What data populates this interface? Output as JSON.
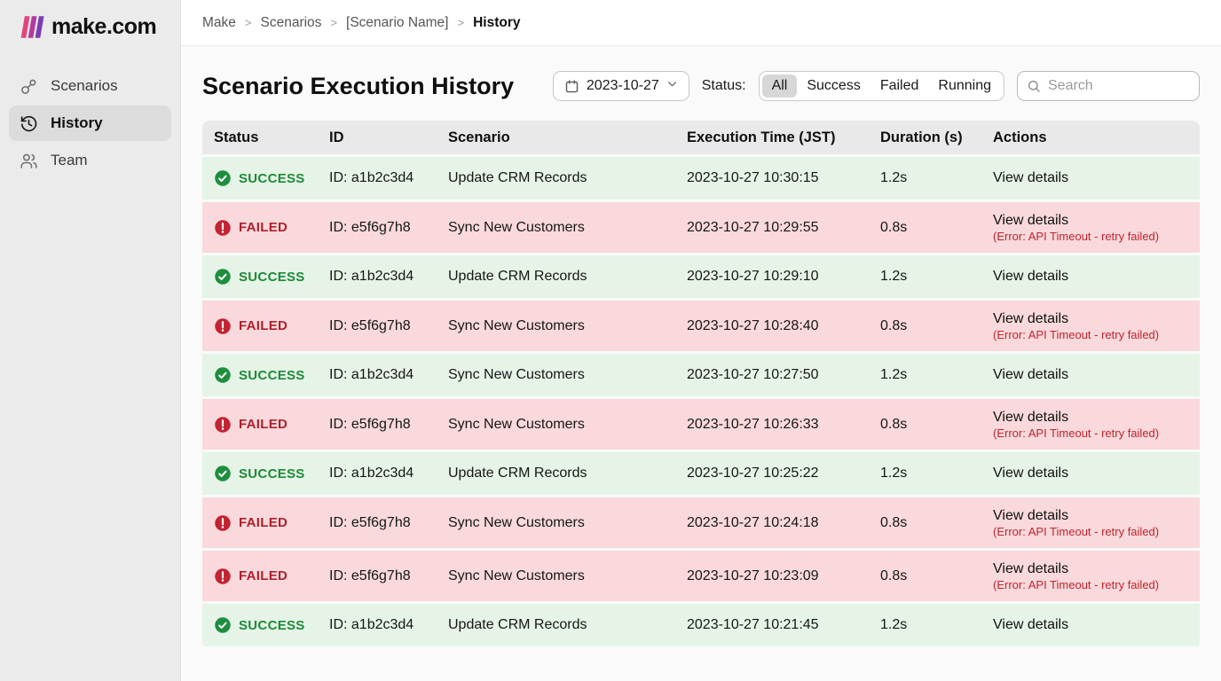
{
  "brand": {
    "name": "make.com",
    "bar_colors": [
      "#e0457c",
      "#b23a9c",
      "#7b3db4"
    ]
  },
  "breadcrumb": {
    "items": [
      "Make",
      "Scenarios",
      "[Scenario Name]",
      "History"
    ],
    "separator": ">"
  },
  "sidebar": {
    "items": [
      {
        "label": "Scenarios",
        "icon": "nodes-icon",
        "active": false
      },
      {
        "label": "History",
        "icon": "history-icon",
        "active": true
      },
      {
        "label": "Team",
        "icon": "team-icon",
        "active": false
      }
    ]
  },
  "page": {
    "title": "Scenario Execution History"
  },
  "filters": {
    "date_value": "2023-10-27",
    "date_icon": "calendar-icon",
    "status_label": "Status:",
    "status_options": [
      "All",
      "Success",
      "Failed",
      "Running"
    ],
    "status_active": "All",
    "search_placeholder": "Search",
    "search_icon": "search-icon"
  },
  "table": {
    "headers": [
      "Status",
      "ID",
      "Scenario",
      "Execution Time (JST)",
      "Duration (s)",
      "Actions"
    ],
    "action_label": "View details",
    "error_label": "(Error: API Timeout - retry failed)",
    "rows": [
      {
        "status": "SUCCESS",
        "icon": "check-circle-icon",
        "id": "ID: a1b2c3d4",
        "scenario": "Update CRM Records",
        "time": "2023-10-27 10:30:15",
        "duration": "1.2s",
        "has_error": false
      },
      {
        "status": "FAILED",
        "icon": "exclamation-circle-icon",
        "id": "ID: e5f6g7h8",
        "scenario": "Sync New Customers",
        "time": "2023-10-27 10:29:55",
        "duration": "0.8s",
        "has_error": true
      },
      {
        "status": "SUCCESS",
        "icon": "check-circle-icon",
        "id": "ID: a1b2c3d4",
        "scenario": "Update CRM Records",
        "time": "2023-10-27 10:29:10",
        "duration": "1.2s",
        "has_error": false
      },
      {
        "status": "FAILED",
        "icon": "exclamation-circle-icon",
        "id": "ID: e5f6g7h8",
        "scenario": "Sync New Customers",
        "time": "2023-10-27 10:28:40",
        "duration": "0.8s",
        "has_error": true
      },
      {
        "status": "SUCCESS",
        "icon": "check-circle-icon",
        "id": "ID: a1b2c3d4",
        "scenario": "Sync New Customers",
        "time": "2023-10-27 10:27:50",
        "duration": "1.2s",
        "has_error": false
      },
      {
        "status": "FAILED",
        "icon": "exclamation-circle-icon",
        "id": "ID: e5f6g7h8",
        "scenario": "Sync New Customers",
        "time": "2023-10-27 10:26:33",
        "duration": "0.8s",
        "has_error": true
      },
      {
        "status": "SUCCESS",
        "icon": "check-circle-icon",
        "id": "ID: a1b2c3d4",
        "scenario": "Update CRM Records",
        "time": "2023-10-27 10:25:22",
        "duration": "1.2s",
        "has_error": false
      },
      {
        "status": "FAILED",
        "icon": "exclamation-circle-icon",
        "id": "ID: e5f6g7h8",
        "scenario": "Sync New Customers",
        "time": "2023-10-27 10:24:18",
        "duration": "0.8s",
        "has_error": true
      },
      {
        "status": "FAILED",
        "icon": "exclamation-circle-icon",
        "id": "ID: e5f6g7h8",
        "scenario": "Sync New Customers",
        "time": "2023-10-27 10:23:09",
        "duration": "0.8s",
        "has_error": true
      },
      {
        "status": "SUCCESS",
        "icon": "check-circle-icon",
        "id": "ID: a1b2c3d4",
        "scenario": "Update CRM Records",
        "time": "2023-10-27 10:21:45",
        "duration": "1.2s",
        "has_error": false
      }
    ]
  },
  "colors": {
    "success_icon": "#1e8e3e",
    "success_text": "#1d8a39",
    "success_row_bg": "#e5f4e6",
    "failed_icon": "#c22333",
    "failed_text": "#b01f2e",
    "failed_row_bg": "#f9d9db",
    "error_text": "#c2232e",
    "sidebar_bg": "#ebebeb",
    "active_nav_bg": "#dcdcdc",
    "header_row_bg": "#e9e9e9"
  }
}
